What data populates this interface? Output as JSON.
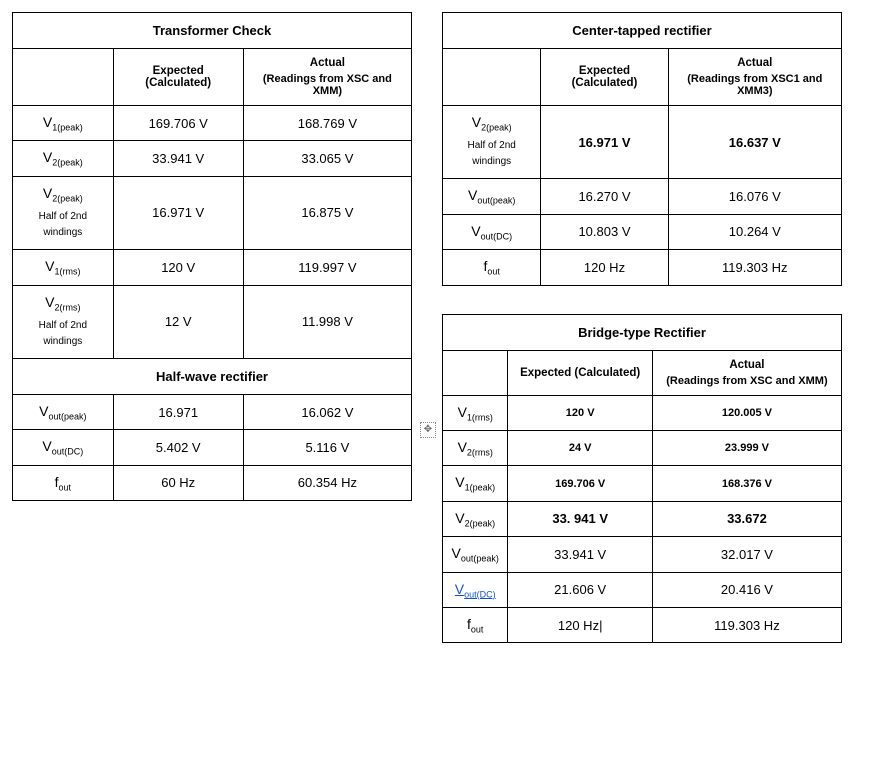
{
  "tables": {
    "transformer": {
      "title": "Transformer Check",
      "headers": {
        "expected": "Expected (Calculated)",
        "actual_main": "Actual",
        "actual_sub": "(Readings from XSC and XMM)"
      },
      "rows": [
        {
          "param_main": "V",
          "param_sub": "1(peak)",
          "param_note": "",
          "expected": "169.706 V",
          "actual": "168.769 V"
        },
        {
          "param_main": "V",
          "param_sub": "2(peak)",
          "param_note": "",
          "expected": "33.941 V",
          "actual": "33.065 V"
        },
        {
          "param_main": "V",
          "param_sub": "2(peak)",
          "param_note": "Half of 2nd windings",
          "expected": "16.971 V",
          "actual": "16.875 V"
        },
        {
          "param_main": "V",
          "param_sub": "1(rms)",
          "param_note": "",
          "expected": "120 V",
          "actual": "119.997 V"
        },
        {
          "param_main": "V",
          "param_sub": "2(rms)",
          "param_note": "Half of 2nd windings",
          "expected": "12 V",
          "actual": "11.998 V"
        }
      ]
    },
    "halfwave": {
      "title": "Half-wave rectifier",
      "rows": [
        {
          "param_main": "V",
          "param_sub": "out(peak)",
          "expected": "16.971",
          "actual": "16.062 V"
        },
        {
          "param_main": "V",
          "param_sub": "out(DC)",
          "expected": "5.402 V",
          "actual": "5.116 V"
        },
        {
          "param_main": "f",
          "param_sub": "out",
          "expected": "60 Hz",
          "actual": "60.354 Hz"
        }
      ]
    },
    "centertap": {
      "title": "Center-tapped rectifier",
      "headers": {
        "expected": "Expected (Calculated)",
        "actual_main": "Actual",
        "actual_sub": "(Readings from XSC1 and XMM3)"
      },
      "rows": [
        {
          "param_main": "V",
          "param_sub": "2(peak)",
          "param_note": "Half of 2nd windings",
          "expected": "16.971 V",
          "actual": "16.637 V",
          "bold": true
        },
        {
          "param_main": "V",
          "param_sub": "out(peak)",
          "param_note": "",
          "expected": "16.270 V",
          "actual": "16.076 V"
        },
        {
          "param_main": "V",
          "param_sub": "out(DC)",
          "param_note": "",
          "expected": "10.803 V",
          "actual": "10.264 V"
        },
        {
          "param_main": "f",
          "param_sub": "out",
          "param_note": "",
          "expected": "120 Hz",
          "actual": "119.303 Hz"
        }
      ]
    },
    "bridge": {
      "title": "Bridge-type Rectifier",
      "headers": {
        "expected": "Expected (Calculated)",
        "actual_main": "Actual",
        "actual_sub": "(Readings from XSC and XMM)"
      },
      "rows": [
        {
          "param_main": "V",
          "param_sub": "1(rms)",
          "expected": "120 V",
          "actual": "120.005 V",
          "bold": true,
          "small": true
        },
        {
          "param_main": "V",
          "param_sub": "2(rms)",
          "expected": "24 V",
          "actual": "23.999 V",
          "bold": true,
          "small": true
        },
        {
          "param_main": "V",
          "param_sub": "1(peak)",
          "expected": "169.706 V",
          "actual": "168.376 V",
          "bold": true,
          "small": true
        },
        {
          "param_main": "V",
          "param_sub": "2(peak)",
          "expected": "33. 941 V",
          "actual": "33.672",
          "bold": true
        },
        {
          "param_main": "V",
          "param_sub": "out(peak)",
          "expected": "33.941 V",
          "actual": "32.017 V"
        },
        {
          "param_main": "V",
          "param_sub": "out(DC)",
          "expected": "21.606 V",
          "actual": "20.416 V",
          "under": true
        },
        {
          "param_main": "f",
          "param_sub": "out",
          "expected": "120 Hz",
          "actual": "119.303 Hz",
          "cursor": true
        }
      ]
    }
  },
  "anchor_glyph": "✥"
}
